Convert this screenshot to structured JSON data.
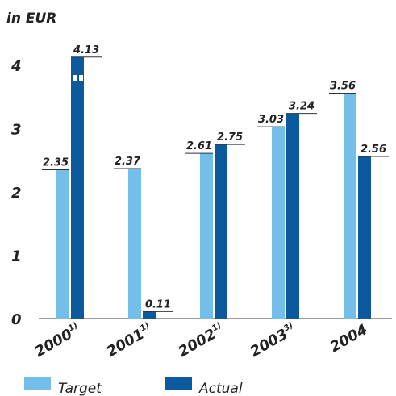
{
  "chart_data": {
    "type": "bar",
    "title": "in EUR",
    "categories": [
      "2000",
      "2001",
      "2002",
      "2003",
      "2004"
    ],
    "category_notes": [
      "1)",
      "1)",
      "1)",
      "3)",
      null
    ],
    "series": [
      {
        "name": "Target",
        "color": "#74bfea",
        "values": [
          2.35,
          2.37,
          2.61,
          3.03,
          3.56
        ]
      },
      {
        "name": "Actual",
        "color": "#0b5a9e",
        "values": [
          4.13,
          0.11,
          2.75,
          3.24,
          2.56
        ]
      }
    ],
    "ylim": [
      0,
      4.4
    ],
    "yticks": [
      0,
      1,
      2,
      3,
      4
    ],
    "grid": false
  }
}
